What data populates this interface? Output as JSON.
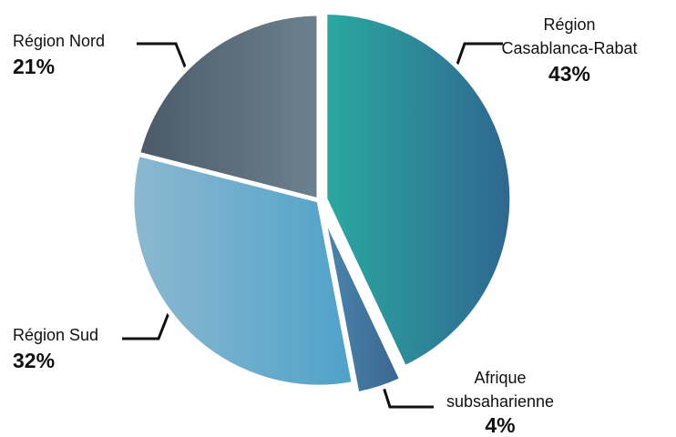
{
  "chart_data": {
    "type": "pie",
    "categories": [
      "Région Casablanca-Rabat",
      "Afrique subsaharienne",
      "Région Sud",
      "Région Nord"
    ],
    "values": [
      43,
      4,
      32,
      21
    ],
    "value_labels": [
      "43%",
      "4%",
      "32%",
      "21%"
    ],
    "colors": [
      [
        "#2aa9a0",
        "#2f6690"
      ],
      [
        "#4a86ad",
        "#3a6690"
      ],
      [
        "#8db8d0",
        "#4ea2c9"
      ],
      [
        "#4c5a68",
        "#6c818f"
      ]
    ]
  }
}
